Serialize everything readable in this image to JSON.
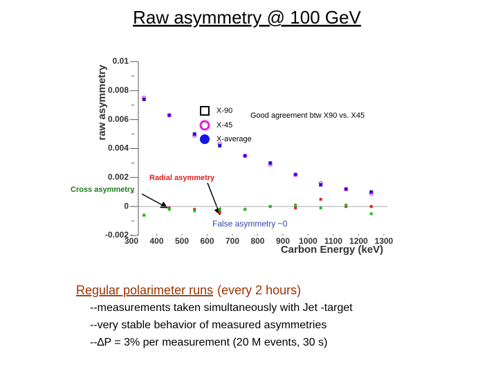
{
  "chart_data": {
    "type": "scatter",
    "y_label": "raw asymmetry",
    "x_label": "Carbon Energy (keV)",
    "x": [
      350,
      450,
      550,
      650,
      750,
      850,
      950,
      1050,
      1150,
      1250
    ],
    "series": [
      {
        "name": "X-90",
        "color": "#1a1a8c",
        "marker": "square",
        "values": [
          0.0074,
          0.0063,
          0.005,
          0.0042,
          0.0035,
          0.003,
          0.0022,
          0.0015,
          0.0012,
          0.001
        ]
      },
      {
        "name": "X-45",
        "color": "#e020e0",
        "marker": "circle-open",
        "values": [
          0.0075,
          0.0063,
          0.0049,
          0.0043,
          0.0035,
          0.0029,
          0.0022,
          0.0016,
          0.0012,
          0.0009
        ]
      },
      {
        "name": "X-average",
        "color": "#1515e6",
        "marker": "circle",
        "values": [
          0.0074,
          0.0063,
          0.005,
          0.0042,
          0.0035,
          0.003,
          0.0022,
          0.0015,
          0.0012,
          0.001
        ]
      },
      {
        "name": "Radial asymmetry",
        "color": "#e02020",
        "marker": "dot",
        "values": [
          -0.0006,
          -0.0001,
          -0.0002,
          -0.0004,
          -0.0002,
          0,
          -0.0001,
          0.0005,
          0,
          0
        ]
      },
      {
        "name": "Cross asymmetry",
        "color": "#22bb22",
        "marker": "dot",
        "values": [
          -0.0006,
          -0.0002,
          -0.0003,
          -0.0002,
          -0.0002,
          0,
          0.0001,
          -0.0001,
          0.0001,
          -0.0005
        ]
      }
    ],
    "xlim": [
      300,
      1300
    ],
    "ylim": [
      -0.002,
      0.01
    ],
    "xticks": [
      300,
      400,
      500,
      600,
      700,
      800,
      900,
      1000,
      1100,
      1200,
      1300
    ],
    "yticks": [
      -0.002,
      0,
      0.002,
      0.004,
      0.006,
      0.008,
      0.01
    ],
    "annotations": [
      "Good agreement btw X90 vs. X45",
      "False asymmetry ~0"
    ]
  },
  "slide": {
    "title": "Raw asymmetry @ 100 GeV",
    "heading": "Regular polarimeter runs",
    "heading_note": "(every 2 hours)",
    "bullets": [
      "--measurements taken simultaneously with Jet -target",
      "--very stable behavior of measured asymmetries",
      "--∆P = 3% per measurement (20 M events, 30 s)"
    ]
  }
}
